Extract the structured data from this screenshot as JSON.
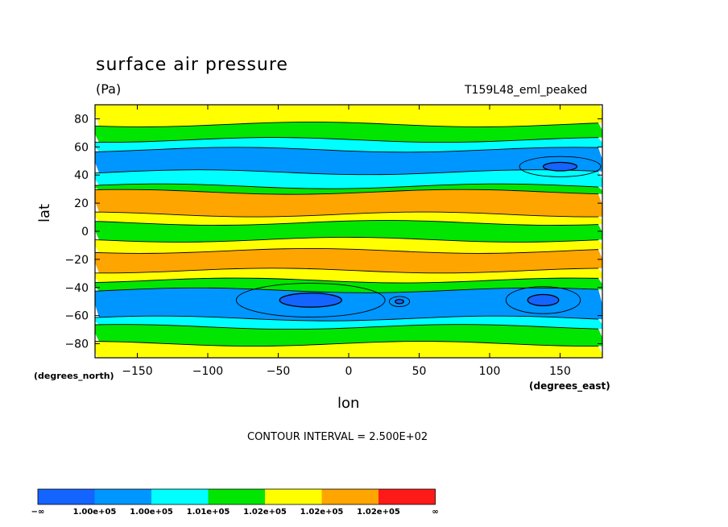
{
  "chart_data": {
    "type": "filled-contour",
    "title": "surface air pressure",
    "units": "(Pa)",
    "run_label": "T159L48_eml_peaked",
    "xlabel": "lon",
    "x_unit_label": "(degrees_east)",
    "ylabel": "lat",
    "y_unit_label": "(degrees_north)",
    "xlim": [
      -180,
      180
    ],
    "ylim": [
      -90,
      90
    ],
    "x_ticks": [
      "−150",
      "−100",
      "−50",
      "0",
      "50",
      "100",
      "150"
    ],
    "x_tick_values": [
      -150,
      -100,
      -50,
      0,
      50,
      100,
      150
    ],
    "y_ticks": [
      "80",
      "60",
      "40",
      "20",
      "0",
      "−20",
      "−40",
      "−60",
      "−80"
    ],
    "y_tick_values": [
      80,
      60,
      40,
      20,
      0,
      -20,
      -40,
      -60,
      -80
    ],
    "contour_interval": "CONTOUR INTERVAL = 2.500E+02",
    "colorbar": {
      "colors": [
        "#1464ff",
        "#0096ff",
        "#00ffff",
        "#00e600",
        "#ffff00",
        "#ffa500",
        "#ff1a1a"
      ],
      "labels": [
        "−∞",
        "1.00e+05",
        "1.00e+05",
        "1.01e+05",
        "1.02e+05",
        "1.02e+05",
        "1.02e+05",
        "∞"
      ]
    },
    "lat_bands": [
      {
        "lat_top": 90,
        "lat_bottom": 76,
        "color_index": 4
      },
      {
        "lat_top": 76,
        "lat_bottom": 65,
        "color_index": 3
      },
      {
        "lat_top": 65,
        "lat_bottom": 58,
        "color_index": 2
      },
      {
        "lat_top": 58,
        "lat_bottom": 42,
        "color_index": 1
      },
      {
        "lat_top": 42,
        "lat_bottom": 32,
        "color_index": 2
      },
      {
        "lat_top": 32,
        "lat_bottom": 28,
        "color_index": 3
      },
      {
        "lat_top": 28,
        "lat_bottom": 12,
        "color_index": 5
      },
      {
        "lat_top": 12,
        "lat_bottom": 6,
        "color_index": 4
      },
      {
        "lat_top": 6,
        "lat_bottom": -6,
        "color_index": 3
      },
      {
        "lat_top": -6,
        "lat_bottom": -14,
        "color_index": 4
      },
      {
        "lat_top": -14,
        "lat_bottom": -28,
        "color_index": 5
      },
      {
        "lat_top": -28,
        "lat_bottom": -35,
        "color_index": 4
      },
      {
        "lat_top": -35,
        "lat_bottom": -42,
        "color_index": 3
      },
      {
        "lat_top": -42,
        "lat_bottom": -62,
        "color_index": 1
      },
      {
        "lat_top": -62,
        "lat_bottom": -68,
        "color_index": 2
      },
      {
        "lat_top": -68,
        "lat_bottom": -80,
        "color_index": 3
      },
      {
        "lat_top": -80,
        "lat_bottom": -90,
        "color_index": 4
      }
    ],
    "minima": [
      {
        "lon": 150,
        "lat": 46,
        "rlon": 12,
        "rlat": 3,
        "color_index": 0
      },
      {
        "lon": -27,
        "lat": -49,
        "rlon": 22,
        "rlat": 5,
        "color_index": 0
      },
      {
        "lon": 138,
        "lat": -49,
        "rlon": 11,
        "rlat": 4,
        "color_index": 0
      },
      {
        "lon": 36,
        "lat": -50,
        "rlon": 3,
        "rlat": 1.5,
        "color_index": 0
      }
    ]
  }
}
